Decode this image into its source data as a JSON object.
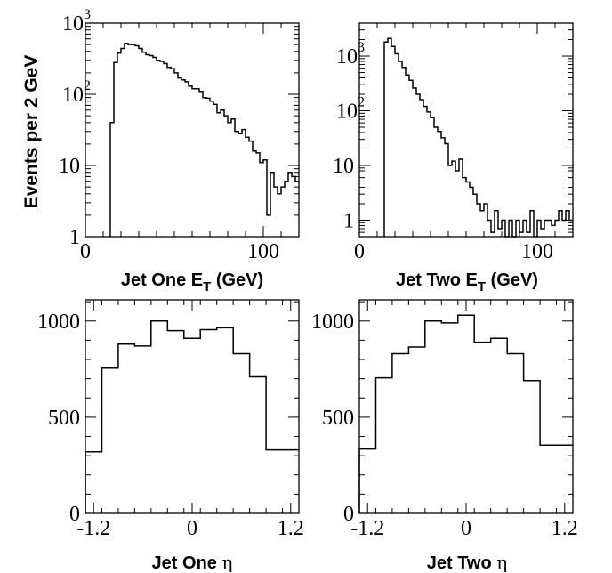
{
  "figure": {
    "ylabel": "Events per 2 GeV"
  },
  "chart_data": [
    {
      "type": "histogram",
      "panel": "top-left",
      "xlabel_main": "Jet One E",
      "xlabel_sub": "T",
      "xlabel_unit": "(GeV)",
      "xlim": [
        0,
        120
      ],
      "ylim": [
        1,
        1000
      ],
      "yscale": "log",
      "xticks": [
        {
          "v": 0,
          "label": "0"
        },
        {
          "v": 100,
          "label": "100"
        }
      ],
      "yticks": [
        {
          "v": 1,
          "base": "1",
          "exp": ""
        },
        {
          "v": 10,
          "base": "10",
          "exp": ""
        },
        {
          "v": 100,
          "base": "10",
          "exp": "2"
        },
        {
          "v": 1000,
          "base": "10",
          "exp": "3"
        }
      ],
      "bin_width": 2,
      "x_start": 14,
      "values": [
        40,
        280,
        380,
        440,
        520,
        500,
        500,
        480,
        440,
        390,
        360,
        350,
        330,
        300,
        290,
        270,
        240,
        230,
        200,
        170,
        160,
        150,
        130,
        120,
        120,
        110,
        90,
        88,
        80,
        72,
        55,
        60,
        50,
        40,
        45,
        30,
        28,
        32,
        25,
        22,
        16,
        15,
        11,
        12,
        2,
        8,
        5,
        4,
        5,
        6,
        8,
        7,
        6
      ]
    },
    {
      "type": "histogram",
      "panel": "top-right",
      "xlabel_main": "Jet Two E",
      "xlabel_sub": "T",
      "xlabel_unit": "(GeV)",
      "xlim": [
        0,
        120
      ],
      "ylim": [
        0.5,
        4000
      ],
      "yscale": "log",
      "xticks": [
        {
          "v": 0,
          "label": "0"
        },
        {
          "v": 100,
          "label": "100"
        }
      ],
      "yticks": [
        {
          "v": 1,
          "base": "1",
          "exp": ""
        },
        {
          "v": 10,
          "base": "10",
          "exp": ""
        },
        {
          "v": 100,
          "base": "10",
          "exp": "2"
        },
        {
          "v": 1000,
          "base": "10",
          "exp": "3"
        }
      ],
      "bin_width": 2,
      "x_start": 14,
      "values": [
        1800,
        2100,
        1500,
        1100,
        800,
        620,
        450,
        360,
        260,
        200,
        160,
        120,
        95,
        75,
        50,
        42,
        32,
        25,
        10,
        12,
        8,
        13,
        6,
        5,
        4,
        3,
        2,
        1.5,
        2,
        1,
        0.6,
        1.5,
        0.7,
        1,
        0.5,
        1,
        0.5,
        1,
        0.6,
        1,
        0.6,
        1.5,
        0.5,
        1,
        0.7,
        1,
        1,
        0.8,
        1,
        1.5,
        1,
        1.5,
        1
      ]
    },
    {
      "type": "histogram",
      "panel": "bottom-left",
      "xlabel_main": "Jet One ",
      "xlabel_greek": "η",
      "xlim": [
        -1.3,
        1.3
      ],
      "ylim": [
        0,
        1110
      ],
      "yscale": "linear",
      "xticks": [
        {
          "v": -1.2,
          "label": "-1.2"
        },
        {
          "v": 0,
          "label": "0"
        },
        {
          "v": 1.2,
          "label": "1.2"
        }
      ],
      "yticks": [
        {
          "v": 0,
          "base": "0",
          "exp": ""
        },
        {
          "v": 500,
          "base": "500",
          "exp": ""
        },
        {
          "v": 1000,
          "base": "1000",
          "exp": ""
        }
      ],
      "bin_edges": [
        -1.3,
        -1.1,
        -0.9,
        -0.7,
        -0.5,
        -0.3,
        -0.1,
        0.1,
        0.3,
        0.5,
        0.7,
        0.9,
        1.1,
        1.3
      ],
      "values": [
        320,
        755,
        880,
        870,
        1000,
        950,
        910,
        955,
        965,
        830,
        710,
        330,
        330
      ]
    },
    {
      "type": "histogram",
      "panel": "bottom-right",
      "xlabel_main": "Jet Two ",
      "xlabel_greek": "η",
      "xlim": [
        -1.3,
        1.3
      ],
      "ylim": [
        0,
        1110
      ],
      "yscale": "linear",
      "xticks": [
        {
          "v": -1.2,
          "label": "-1.2"
        },
        {
          "v": 0,
          "label": "0"
        },
        {
          "v": 1.2,
          "label": "1.2"
        }
      ],
      "yticks": [
        {
          "v": 0,
          "base": "0",
          "exp": ""
        },
        {
          "v": 500,
          "base": "500",
          "exp": ""
        },
        {
          "v": 1000,
          "base": "1000",
          "exp": ""
        }
      ],
      "bin_edges": [
        -1.3,
        -1.1,
        -0.9,
        -0.7,
        -0.5,
        -0.3,
        -0.1,
        0.1,
        0.3,
        0.5,
        0.7,
        0.9,
        1.1,
        1.3
      ],
      "values": [
        335,
        705,
        830,
        865,
        1000,
        990,
        1030,
        890,
        910,
        830,
        690,
        355,
        355
      ]
    }
  ]
}
